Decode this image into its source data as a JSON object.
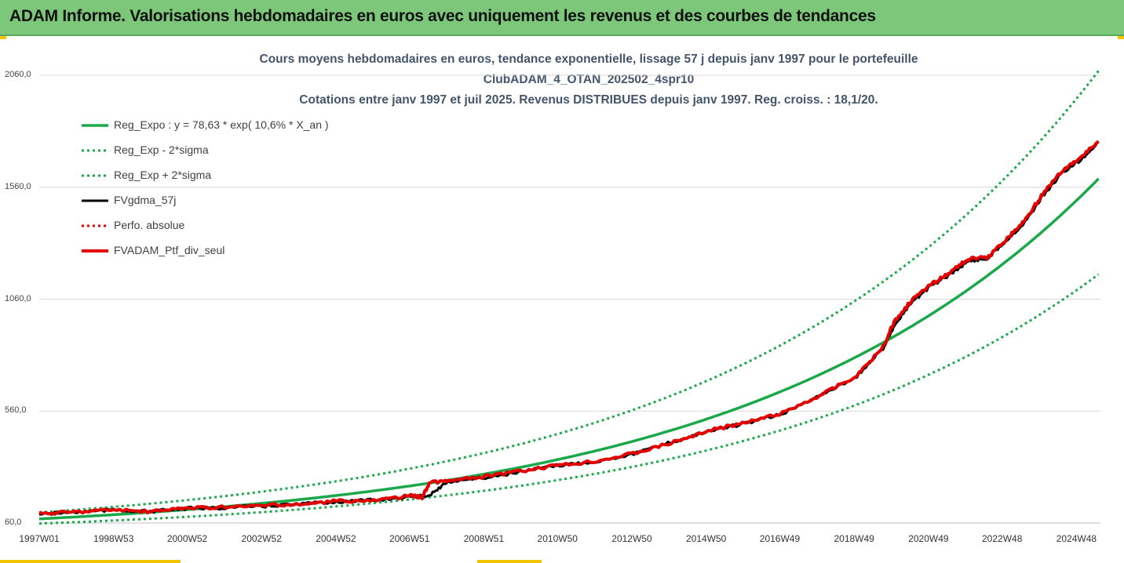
{
  "banner": {
    "title": "ADAM Informe. Valorisations hebdomadaires en euros avec uniquement les revenus et des courbes de tendances"
  },
  "colors": {
    "banner_bg": "#7dc77a",
    "accent": "#f5c400",
    "trend": "#1aa84a",
    "fv": "#000000",
    "portfolio": "#e30000"
  },
  "chart_data": {
    "type": "line",
    "title": [
      "Cours moyens hebdomadaires  en euros, tendance exponentielle, lissage 57 j depuis janv 1997 pour le portefeuille",
      "ClubADAM_4_OTAN_202502_4spr10",
      "Cotations  entre janv 1997 et juil 2025. Revenus DISTRIBUES depuis janv 1997. Reg. croiss. : 18,1/20."
    ],
    "y_ticks": [
      "60,0",
      "560,0",
      "1060,0",
      "1560,0",
      "2060,0"
    ],
    "ylim": [
      60,
      2060
    ],
    "x_ticks": [
      "1997W01",
      "1998W53",
      "2000W52",
      "2002W52",
      "2004W52",
      "2006W51",
      "2008W51",
      "2010W50",
      "2012W50",
      "2014W50",
      "2016W49",
      "2018W49",
      "2020W49",
      "2022W48",
      "2024W48"
    ],
    "xlim": [
      1997.0,
      2025.55
    ],
    "grid": "horizontal",
    "legend_position": "top-left",
    "series": [
      {
        "name": "Reg_Expo : y = 78,63 * exp( 10,6% *  X_an )",
        "style": "solid-green",
        "x": [
          1997,
          2000,
          2003,
          2006,
          2009,
          2012,
          2015,
          2018,
          2021,
          2024,
          2025.5
        ],
        "y": [
          78.6,
          107.9,
          148.2,
          203.5,
          279.4,
          383.6,
          526.8,
          723.3,
          993.2,
          1363.8,
          1598
        ]
      },
      {
        "name": "Reg_Exp - 2*sigma",
        "style": "dotted-green",
        "x": [
          1997,
          2000,
          2003,
          2006,
          2009,
          2012,
          2015,
          2018,
          2021,
          2024,
          2025.5
        ],
        "y": [
          57.6,
          79.1,
          108.6,
          149.1,
          204.7,
          281.1,
          386,
          530,
          727.8,
          999.3,
          1171
        ]
      },
      {
        "name": "Reg_Exp + 2*sigma",
        "style": "dotted-green",
        "x": [
          1997,
          2000,
          2003,
          2006,
          2009,
          2012,
          2015,
          2018,
          2021,
          2024,
          2025.5
        ],
        "y": [
          107.3,
          147.3,
          202.2,
          277.7,
          381.3,
          523.5,
          718.9,
          987.1,
          1355.4,
          1861.2,
          2080
        ]
      },
      {
        "name": "FVgdma_57j",
        "style": "solid-black",
        "x": [
          1997,
          1998,
          1999,
          2000,
          2001,
          2002,
          2003,
          2004,
          2005,
          2006,
          2007,
          2007.5,
          2008,
          2009,
          2010,
          2011,
          2012,
          2013,
          2014,
          2015,
          2016,
          2017,
          2018,
          2019,
          2019.7,
          2020,
          2020.5,
          2021,
          2021.5,
          2022,
          2022.5,
          2023,
          2023.5,
          2024,
          2024.5,
          2025,
          2025.5
        ],
        "y": [
          100,
          108,
          118,
          112,
          125,
          128,
          135,
          145,
          155,
          162,
          178,
          185,
          245,
          262,
          290,
          318,
          335,
          370,
          420,
          470,
          505,
          548,
          630,
          715,
          840,
          940,
          1050,
          1120,
          1170,
          1230,
          1240,
          1320,
          1400,
          1520,
          1620,
          1680,
          1760
        ]
      },
      {
        "name": "Perfo. absolue",
        "style": "dotted-red",
        "x": [],
        "y": []
      },
      {
        "name": "FVADAM_Ptf_div_seul",
        "style": "solid-red",
        "x": [
          1997,
          1998,
          1999,
          2000,
          2001,
          2002,
          2003,
          2004,
          2005,
          2006,
          2007,
          2007.3,
          2007.5,
          2008,
          2009,
          2010,
          2011,
          2012,
          2013,
          2014,
          2015,
          2016,
          2017,
          2018,
          2019,
          2019.7,
          2020,
          2020.5,
          2021,
          2021.5,
          2022,
          2022.5,
          2023,
          2023.5,
          2024,
          2024.5,
          2025,
          2025.5
        ],
        "y": [
          102,
          110,
          120,
          110,
          128,
          130,
          138,
          142,
          158,
          160,
          182,
          175,
          240,
          248,
          268,
          292,
          318,
          338,
          372,
          418,
          472,
          508,
          552,
          630,
          718,
          845,
          960,
          1060,
          1125,
          1180,
          1240,
          1245,
          1325,
          1410,
          1530,
          1630,
          1690,
          1765
        ]
      }
    ]
  }
}
